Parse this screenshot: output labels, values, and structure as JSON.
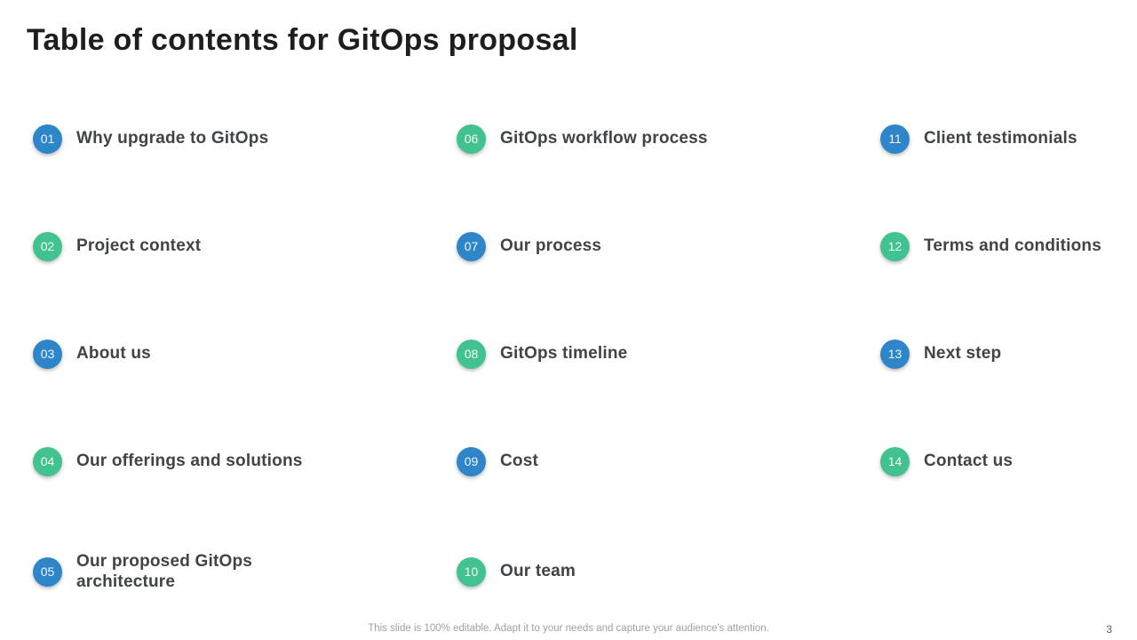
{
  "slide": {
    "title": "Table of contents for GitOps proposal",
    "footer": "This slide is 100% editable. Adapt it to your needs and capture your audience's attention.",
    "page_number": "3"
  },
  "colors": {
    "blue": "#2e86c8",
    "green": "#41c28e",
    "title_text": "#1e1e1e",
    "item_text": "#3f4447",
    "footer_text": "#a0a0a0"
  },
  "columns": [
    {
      "items": [
        {
          "number": "01",
          "label": "Why upgrade to GitOps",
          "color": "blue"
        },
        {
          "number": "02",
          "label": "Project context",
          "color": "green"
        },
        {
          "number": "03",
          "label": "About us",
          "color": "blue"
        },
        {
          "number": "04",
          "label": "Our offerings and solutions",
          "color": "green"
        },
        {
          "number": "05",
          "label": "Our proposed GitOps\narchitecture",
          "color": "blue"
        }
      ]
    },
    {
      "items": [
        {
          "number": "06",
          "label": "GitOps workflow process",
          "color": "green"
        },
        {
          "number": "07",
          "label": "Our process",
          "color": "blue"
        },
        {
          "number": "08",
          "label": "GitOps timeline",
          "color": "green"
        },
        {
          "number": "09",
          "label": "Cost",
          "color": "blue"
        },
        {
          "number": "10",
          "label": "Our team",
          "color": "green"
        }
      ]
    },
    {
      "items": [
        {
          "number": "11",
          "label": "Client testimonials",
          "color": "blue"
        },
        {
          "number": "12",
          "label": "Terms and conditions",
          "color": "green"
        },
        {
          "number": "13",
          "label": "Next step",
          "color": "blue"
        },
        {
          "number": "14",
          "label": "Contact us",
          "color": "green"
        }
      ]
    }
  ]
}
